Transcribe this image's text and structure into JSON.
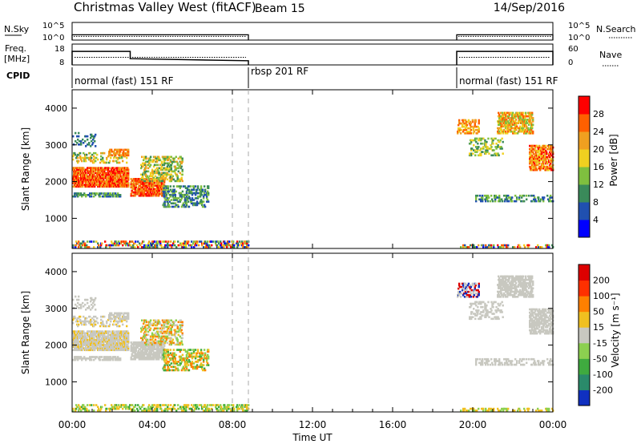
{
  "header": {
    "station": "Christmas Valley West (fitACF)",
    "beam": "Beam 15",
    "date": "14/Sep/2016"
  },
  "chart_data": [
    {
      "type": "line",
      "name": "noise-panel",
      "left_label": "N.Sky",
      "left_ticks": [
        "10^5",
        "10^0"
      ],
      "right_label": "N.Search",
      "right_ticks": [
        "10^5",
        "10^0"
      ],
      "segments": [
        {
          "x": [
            0.0,
            8.8
          ],
          "level": 0.3
        },
        {
          "x": [
            19.2,
            24.0
          ],
          "level": 0.3
        }
      ]
    },
    {
      "type": "line",
      "name": "frequency-panel",
      "left_label": "Freq.",
      "left_unit": "[MHz]",
      "left_ticks": [
        18,
        8
      ],
      "right_label": "Nave",
      "right_ticks": [
        60,
        0
      ],
      "freq_series": {
        "x": [
          0.0,
          2.9,
          2.9,
          8.8,
          19.2,
          24.0
        ],
        "y": [
          14.5,
          14.5,
          11.0,
          10.0,
          14.5,
          14.5
        ]
      },
      "nave_series": {
        "x": [
          0.0,
          8.8,
          19.2,
          24.0
        ],
        "y": [
          22,
          22,
          22,
          22
        ]
      }
    },
    {
      "type": "table",
      "name": "cpid-bar",
      "label": "CPID",
      "modes": [
        {
          "start": 0.0,
          "end": 8.8,
          "label": "normal (fast) 151 RF"
        },
        {
          "start": 8.8,
          "end": 19.2,
          "label": "rbsp 201 RF"
        },
        {
          "start": 19.2,
          "end": 24.0,
          "label": "normal (fast) 151 RF"
        }
      ]
    },
    {
      "type": "heatmap",
      "name": "power-panel",
      "ylabel": "Slant Range [km]",
      "yticks": [
        1000,
        2000,
        3000,
        4000
      ],
      "ylim": [
        180,
        4500
      ],
      "colorbar_label": "Power [dB]",
      "colorbar_ticks": [
        4,
        8,
        12,
        16,
        20,
        24,
        28
      ],
      "colors": [
        "#0000ff",
        "#2050b0",
        "#3a8a5a",
        "#7fbf3f",
        "#f0d020",
        "#f0a020",
        "#ff6000",
        "#ff0000"
      ]
    },
    {
      "type": "heatmap",
      "name": "velocity-panel",
      "ylabel": "Slant Range [km]",
      "yticks": [
        1000,
        2000,
        3000,
        4000
      ],
      "ylim": [
        180,
        4500
      ],
      "colorbar_label": "Velocity [m s⁻¹]",
      "colorbar_ticks": [
        200,
        100,
        50,
        15,
        -15,
        -50,
        -100,
        -200
      ],
      "colors": [
        "#1030c0",
        "#2a8a6a",
        "#3faa3f",
        "#8cd050",
        "#c8c8c0",
        "#f0c020",
        "#ff8000",
        "#ff3000",
        "#dd0000"
      ]
    }
  ],
  "time_axis": {
    "label": "Time UT",
    "ticks": [
      "00:00",
      "04:00",
      "08:00",
      "12:00",
      "16:00",
      "20:00",
      "00:00"
    ],
    "xlim": [
      0,
      24
    ]
  },
  "dashed_markers": [
    8.0,
    8.8
  ]
}
